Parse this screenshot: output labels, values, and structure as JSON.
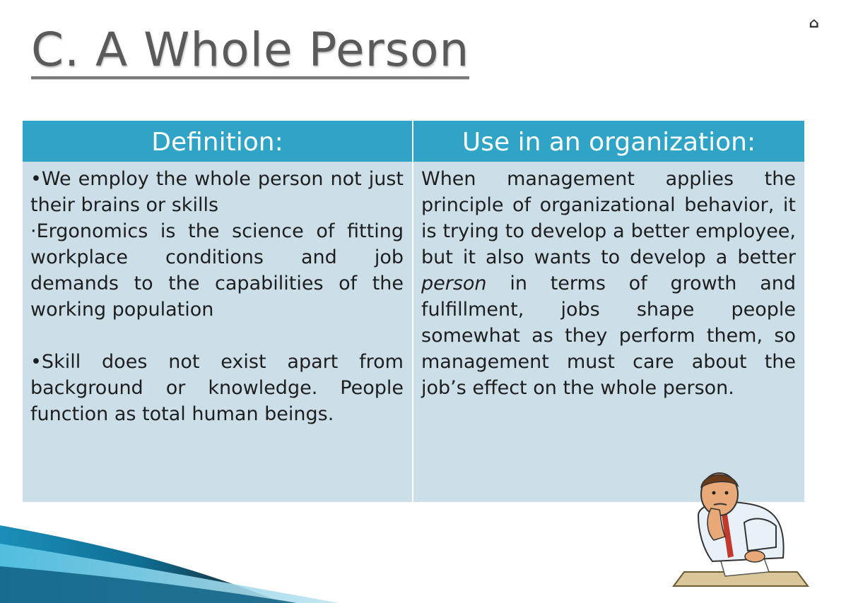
{
  "slide": {
    "title": "C. A Whole Person",
    "corner_glyph": "⌂"
  },
  "table": {
    "headers": [
      "Definition:",
      "Use in an organization:"
    ],
    "definition": {
      "bullet_1": "•We employ the whole person not just their brains or skills",
      "bullet_2": "·Ergonomics is the science of fitting workplace conditions and job demands to the capabilities of the working population",
      "bullet_3": "•Skill does not exist apart from background or knowledge. People function as total human beings."
    },
    "use": {
      "text_before": "When management applies the principle of organizational behavior, it is trying to develop a better employee, but it also wants to develop a better ",
      "emphasis": "person",
      "text_after": " in terms of growth and fulfillment, jobs shape people somewhat as they perform them, so management must care about the job’s effect on the whole person."
    }
  },
  "colors": {
    "header_bg": "#2fa4c7",
    "cell_bg": "#ccdfe8",
    "title_text": "#5a5a5a"
  },
  "clipart": "tired-office-worker-illustration"
}
